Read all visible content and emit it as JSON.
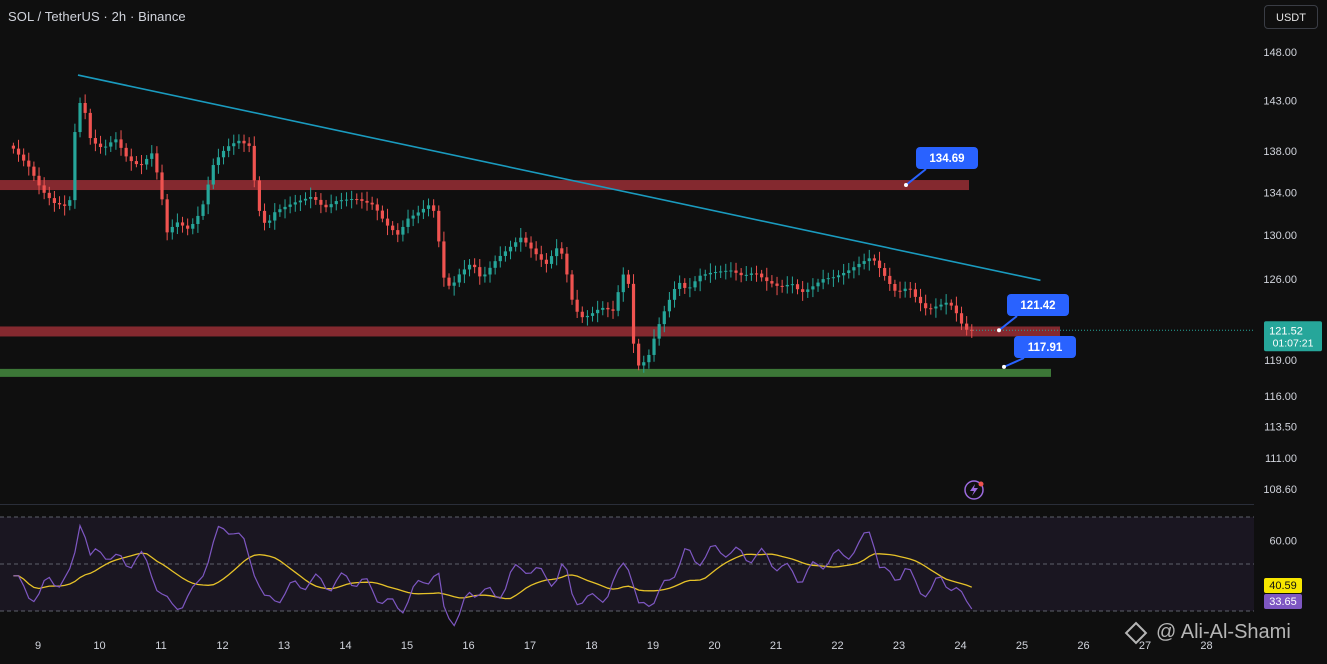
{
  "header": {
    "symbol_title": "SOL / TetherUS · 2h · Binance",
    "currency_button": "USDT"
  },
  "watermark": {
    "text": "@ Ali-Al-Shami",
    "icon": "binance-diamond-icon"
  },
  "colors": {
    "background": "#0f0f0f",
    "bull_candle": "#26a69a",
    "bear_candle": "#ef5350",
    "resistance_zone": "#8b2b31",
    "support_zone": "#3f7d3a",
    "trendline": "#1a9bbf",
    "callout": "#2962ff",
    "rsi_line": "#7e57c2",
    "rsi_ma_line": "#e6c229",
    "rsi_ma_badge": "#f7e600",
    "price_badge": "#26a69a"
  },
  "chart_data": [
    {
      "type": "candlestick",
      "title": "SOL / TetherUS · 2h · Binance",
      "x_ticks": [
        "9",
        "10",
        "11",
        "12",
        "13",
        "14",
        "15",
        "16",
        "17",
        "18",
        "19",
        "20",
        "21",
        "22",
        "23",
        "24",
        "25",
        "26",
        "27",
        "28"
      ],
      "y_ticks": [
        "148.00",
        "143.00",
        "138.00",
        "134.00",
        "130.00",
        "126.00",
        "121.52",
        "119.00",
        "116.00",
        "113.50",
        "111.00",
        "108.60"
      ],
      "y_scale": "log",
      "ylim": [
        107.5,
        151.5
      ],
      "current_price": {
        "value": 121.52,
        "label": "121.52",
        "countdown": "01:07:21"
      },
      "zones": [
        {
          "name": "resistance",
          "price": 134.69
        },
        {
          "name": "mid-support",
          "price": 121.42
        },
        {
          "name": "support",
          "price": 117.91
        }
      ],
      "callouts": [
        {
          "label": "134.69",
          "price": 134.69
        },
        {
          "label": "121.42",
          "price": 121.42
        },
        {
          "label": "117.91",
          "price": 117.91
        }
      ],
      "trendline": {
        "from": {
          "day": 9.65,
          "price": 145.6
        },
        "to": {
          "day": 25.3,
          "price": 125.9
        }
      },
      "waypoints": [
        [
          8.6,
          138.5
        ],
        [
          8.9,
          136.4
        ],
        [
          9.1,
          134.2
        ],
        [
          9.3,
          133.0
        ],
        [
          9.55,
          132.6
        ],
        [
          9.65,
          140.5
        ],
        [
          9.75,
          143.5
        ],
        [
          9.9,
          139.0
        ],
        [
          10.1,
          138.2
        ],
        [
          10.3,
          139.2
        ],
        [
          10.5,
          137.2
        ],
        [
          10.7,
          136.5
        ],
        [
          10.9,
          137.8
        ],
        [
          11.05,
          134.0
        ],
        [
          11.1,
          130.0
        ],
        [
          11.3,
          131.2
        ],
        [
          11.5,
          130.5
        ],
        [
          11.7,
          132.3
        ],
        [
          11.9,
          136.8
        ],
        [
          12.1,
          138.3
        ],
        [
          12.3,
          139.0
        ],
        [
          12.5,
          138.4
        ],
        [
          12.6,
          132.8
        ],
        [
          12.75,
          130.8
        ],
        [
          12.9,
          132.2
        ],
        [
          13.2,
          133.0
        ],
        [
          13.5,
          133.6
        ],
        [
          13.7,
          132.5
        ],
        [
          13.9,
          133.2
        ],
        [
          14.2,
          133.4
        ],
        [
          14.5,
          132.8
        ],
        [
          14.7,
          131.0
        ],
        [
          14.9,
          130.0
        ],
        [
          15.05,
          131.5
        ],
        [
          15.2,
          132.0
        ],
        [
          15.45,
          133.0
        ],
        [
          15.55,
          130.0
        ],
        [
          15.6,
          126.5
        ],
        [
          15.75,
          125.2
        ],
        [
          15.9,
          126.5
        ],
        [
          16.1,
          127.5
        ],
        [
          16.25,
          126.0
        ],
        [
          16.5,
          127.8
        ],
        [
          16.7,
          128.8
        ],
        [
          16.9,
          129.8
        ],
        [
          17.1,
          128.5
        ],
        [
          17.3,
          127.3
        ],
        [
          17.5,
          129.0
        ],
        [
          17.6,
          127.8
        ],
        [
          17.7,
          124.5
        ],
        [
          17.85,
          122.6
        ],
        [
          18.0,
          122.8
        ],
        [
          18.2,
          123.5
        ],
        [
          18.4,
          123.2
        ],
        [
          18.55,
          126.5
        ],
        [
          18.65,
          125.5
        ],
        [
          18.7,
          121.0
        ],
        [
          18.8,
          118.5
        ],
        [
          18.95,
          119.0
        ],
        [
          19.1,
          121.5
        ],
        [
          19.25,
          123.5
        ],
        [
          19.45,
          125.8
        ],
        [
          19.6,
          125.0
        ],
        [
          19.8,
          126.3
        ],
        [
          20.0,
          126.6
        ],
        [
          20.3,
          126.8
        ],
        [
          20.5,
          126.3
        ],
        [
          20.7,
          126.6
        ],
        [
          20.9,
          125.8
        ],
        [
          21.1,
          125.3
        ],
        [
          21.3,
          125.6
        ],
        [
          21.45,
          124.8
        ],
        [
          21.6,
          125.2
        ],
        [
          21.8,
          126.0
        ],
        [
          22.0,
          126.2
        ],
        [
          22.2,
          126.7
        ],
        [
          22.4,
          127.4
        ],
        [
          22.6,
          128.0
        ],
        [
          22.75,
          126.8
        ],
        [
          22.9,
          125.5
        ],
        [
          23.0,
          124.8
        ],
        [
          23.2,
          125.3
        ],
        [
          23.35,
          124.1
        ],
        [
          23.5,
          123.3
        ],
        [
          23.7,
          123.7
        ],
        [
          23.85,
          124.0
        ],
        [
          24.0,
          122.8
        ],
        [
          24.1,
          121.6
        ],
        [
          24.2,
          121.52
        ]
      ]
    },
    {
      "type": "line",
      "name": "RSI",
      "y_ticks": [
        "60.00"
      ],
      "ylim": [
        20,
        80
      ],
      "bands": [
        30,
        50,
        70
      ],
      "rsi_value_label": "33.65",
      "ma_value_label": "40.59",
      "waypoints": [
        [
          8.6,
          45
        ],
        [
          8.8,
          38
        ],
        [
          9.0,
          36
        ],
        [
          9.2,
          44
        ],
        [
          9.4,
          42
        ],
        [
          9.55,
          46
        ],
        [
          9.7,
          72
        ],
        [
          9.85,
          52
        ],
        [
          10.05,
          56
        ],
        [
          10.25,
          52
        ],
        [
          10.45,
          50
        ],
        [
          10.65,
          54
        ],
        [
          10.85,
          46
        ],
        [
          11.0,
          38
        ],
        [
          11.15,
          31
        ],
        [
          11.35,
          34
        ],
        [
          11.55,
          38
        ],
        [
          11.75,
          52
        ],
        [
          11.95,
          64
        ],
        [
          12.15,
          66
        ],
        [
          12.35,
          58
        ],
        [
          12.55,
          46
        ],
        [
          12.7,
          33
        ],
        [
          12.9,
          36
        ],
        [
          13.2,
          41
        ],
        [
          13.5,
          43
        ],
        [
          13.75,
          41
        ],
        [
          14.0,
          44
        ],
        [
          14.3,
          42
        ],
        [
          14.5,
          37
        ],
        [
          14.7,
          33
        ],
        [
          14.9,
          31
        ],
        [
          15.1,
          38
        ],
        [
          15.3,
          44
        ],
        [
          15.5,
          46
        ],
        [
          15.6,
          30
        ],
        [
          15.8,
          26
        ],
        [
          16.0,
          36
        ],
        [
          16.2,
          40
        ],
        [
          16.45,
          35
        ],
        [
          16.7,
          46
        ],
        [
          16.95,
          49
        ],
        [
          17.2,
          45
        ],
        [
          17.4,
          43
        ],
        [
          17.55,
          49
        ],
        [
          17.7,
          37
        ],
        [
          17.9,
          33
        ],
        [
          18.1,
          37
        ],
        [
          18.3,
          36
        ],
        [
          18.55,
          55
        ],
        [
          18.65,
          45
        ],
        [
          18.75,
          30
        ],
        [
          18.9,
          34
        ],
        [
          19.05,
          36
        ],
        [
          19.25,
          42
        ],
        [
          19.5,
          55
        ],
        [
          19.7,
          51
        ],
        [
          19.9,
          55
        ],
        [
          20.2,
          56
        ],
        [
          20.5,
          53
        ],
        [
          20.75,
          54
        ],
        [
          21.0,
          50
        ],
        [
          21.2,
          47
        ],
        [
          21.4,
          44
        ],
        [
          21.6,
          48
        ],
        [
          21.85,
          52
        ],
        [
          22.1,
          54
        ],
        [
          22.35,
          57
        ],
        [
          22.55,
          66
        ],
        [
          22.7,
          47
        ],
        [
          22.9,
          44
        ],
        [
          23.1,
          48
        ],
        [
          23.3,
          40
        ],
        [
          23.5,
          38
        ],
        [
          23.7,
          44
        ],
        [
          23.9,
          40
        ],
        [
          24.05,
          34
        ],
        [
          24.2,
          33.65
        ]
      ]
    }
  ]
}
